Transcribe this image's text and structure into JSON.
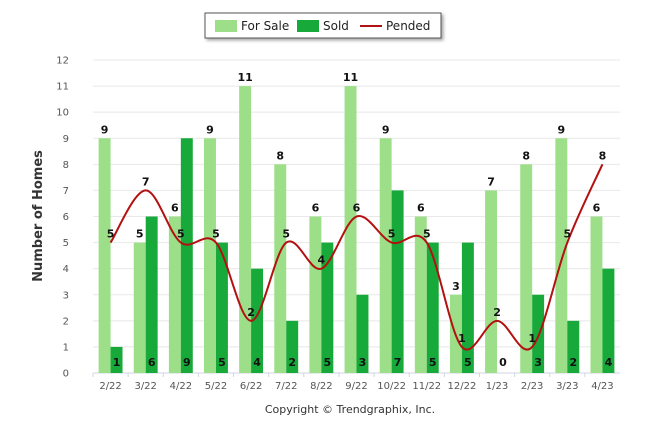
{
  "chart_data": {
    "type": "bar",
    "categories": [
      "2/22",
      "3/22",
      "4/22",
      "5/22",
      "6/22",
      "7/22",
      "8/22",
      "9/22",
      "10/22",
      "11/22",
      "12/22",
      "1/23",
      "2/23",
      "3/23",
      "4/23"
    ],
    "series": [
      {
        "name": "For Sale",
        "kind": "bar",
        "color": "#9ddf88",
        "values": [
          9,
          5,
          6,
          9,
          11,
          8,
          6,
          11,
          9,
          6,
          3,
          7,
          8,
          9,
          6
        ]
      },
      {
        "name": "Sold",
        "kind": "bar",
        "color": "#17a93a",
        "values": [
          1,
          6,
          9,
          5,
          4,
          2,
          5,
          3,
          7,
          5,
          5,
          0,
          3,
          2,
          4
        ]
      },
      {
        "name": "Pended",
        "kind": "line",
        "color": "#b31111",
        "values": [
          5,
          7,
          5,
          5,
          2,
          5,
          4,
          6,
          5,
          5,
          1,
          2,
          1,
          5,
          8
        ]
      }
    ],
    "ylabel": "Number of Homes",
    "ylim": [
      0,
      12
    ],
    "yticks": [
      "0",
      "1",
      "2",
      "3",
      "4",
      "5",
      "6",
      "7",
      "8",
      "9",
      "10",
      "11",
      "12"
    ],
    "grid": true,
    "legend_position": "top-center"
  },
  "footer": {
    "copyright": "Copyright © Trendgraphix, Inc."
  }
}
